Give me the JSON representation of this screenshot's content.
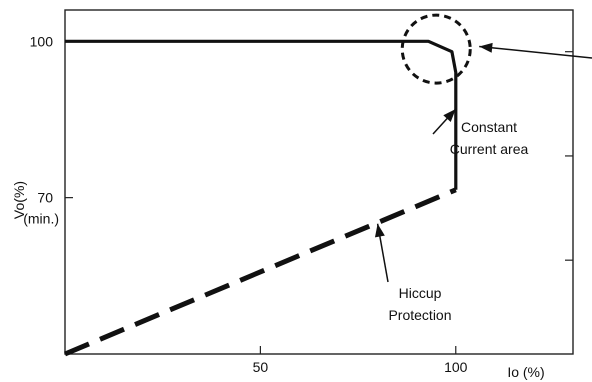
{
  "chart_data": {
    "type": "line",
    "xlabel": "Io (%)",
    "ylabel": "Vo(%)",
    "x_ticks": [
      {
        "value": 50,
        "label": "50"
      },
      {
        "value": 100,
        "label": "100"
      }
    ],
    "y_ticks": [
      {
        "value": 100,
        "label": "100"
      },
      {
        "value": 70,
        "label": "70"
      }
    ],
    "y_tick_sublabel": "(min.)",
    "xlim": [
      0,
      130
    ],
    "ylim": [
      40,
      106
    ],
    "grid": false,
    "series": [
      {
        "style": "solid",
        "points": [
          [
            0,
            100
          ],
          [
            93,
            100
          ],
          [
            99,
            98
          ],
          [
            100,
            94
          ],
          [
            100,
            71.5
          ]
        ]
      },
      {
        "style": "dashed",
        "points": [
          [
            0,
            40
          ],
          [
            100,
            71.5
          ]
        ]
      }
    ],
    "highlight_circle": {
      "x": 95,
      "y": 98.5
    },
    "annotations": [
      {
        "lines": [
          "Constant",
          "Current area"
        ],
        "points_to": [
          100,
          87
        ]
      },
      {
        "lines": [
          "Hiccup",
          "Protection"
        ],
        "points_to": [
          80,
          65
        ]
      },
      {
        "lines": [],
        "points_to": [
          106,
          99
        ]
      }
    ]
  }
}
